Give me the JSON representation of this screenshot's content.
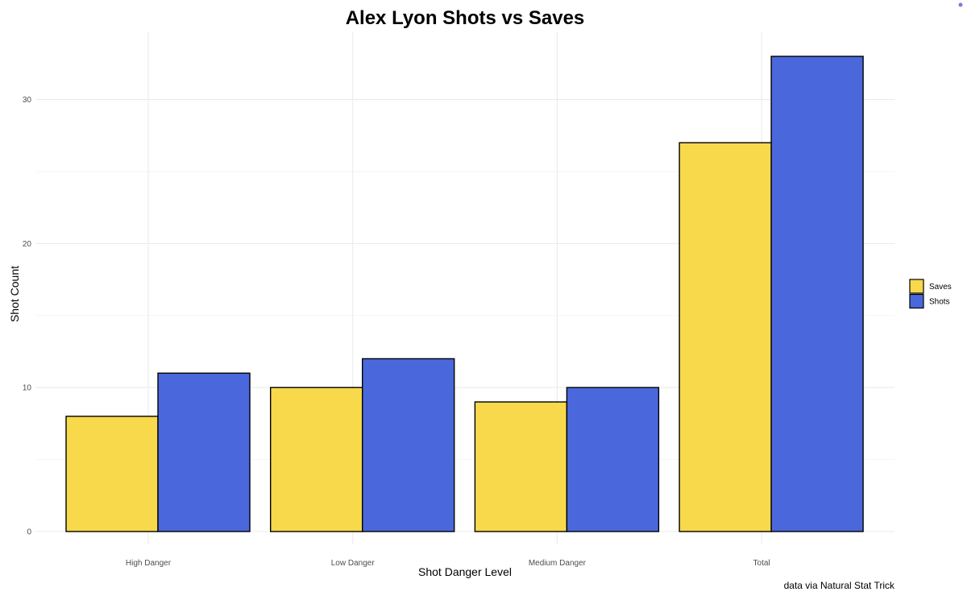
{
  "chart_data": {
    "type": "bar",
    "title": "Alex Lyon Shots vs Saves",
    "xlabel": "Shot Danger Level",
    "ylabel": "Shot Count",
    "caption": "data via Natural Stat Trick",
    "categories": [
      "High Danger",
      "Low Danger",
      "Medium Danger",
      "Total"
    ],
    "series": [
      {
        "name": "Saves",
        "values": [
          8,
          10,
          9,
          27
        ],
        "color": "#F8D94C"
      },
      {
        "name": "Shots",
        "values": [
          11,
          12,
          10,
          33
        ],
        "color": "#4A68DB"
      }
    ],
    "ylim": [
      0,
      33
    ],
    "yticks": [
      0,
      10,
      20,
      30
    ],
    "grid": true,
    "legend_position": "right",
    "bar_outline_color": "#000000",
    "grid_color": "#ebebeb"
  },
  "corner_dot_color": "#7b7bd8"
}
